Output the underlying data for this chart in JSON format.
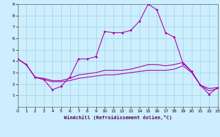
{
  "line1_x": [
    0,
    1,
    2,
    3,
    4,
    5,
    6,
    7,
    8,
    9,
    10,
    11,
    12,
    13,
    14,
    15,
    16,
    17,
    18,
    19,
    20,
    21,
    22,
    23
  ],
  "line1_y": [
    4.2,
    3.7,
    2.6,
    2.4,
    1.5,
    1.8,
    2.6,
    4.2,
    4.2,
    4.4,
    6.6,
    6.5,
    6.5,
    6.7,
    7.5,
    9.0,
    8.5,
    6.5,
    6.1,
    3.8,
    3.1,
    1.9,
    1.1,
    1.7
  ],
  "line2_x": [
    0,
    1,
    2,
    3,
    4,
    5,
    6,
    7,
    8,
    9,
    10,
    11,
    12,
    13,
    14,
    15,
    16,
    17,
    18,
    19,
    20,
    21,
    22,
    23
  ],
  "line2_y": [
    4.2,
    3.7,
    2.6,
    2.5,
    2.3,
    2.3,
    2.5,
    2.8,
    2.9,
    3.0,
    3.2,
    3.2,
    3.2,
    3.3,
    3.5,
    3.7,
    3.7,
    3.6,
    3.7,
    3.9,
    3.1,
    1.9,
    1.6,
    1.7
  ],
  "line3_x": [
    0,
    1,
    2,
    3,
    4,
    5,
    6,
    7,
    8,
    9,
    10,
    11,
    12,
    13,
    14,
    15,
    16,
    17,
    18,
    19,
    20,
    21,
    22,
    23
  ],
  "line3_y": [
    4.2,
    3.7,
    2.6,
    2.4,
    2.2,
    2.2,
    2.3,
    2.5,
    2.6,
    2.7,
    2.8,
    2.8,
    2.9,
    3.0,
    3.1,
    3.2,
    3.2,
    3.2,
    3.3,
    3.6,
    3.0,
    1.9,
    1.4,
    1.6
  ],
  "line_color": "#aa00aa",
  "bg_color": "#cceeff",
  "xlabel": "Windchill (Refroidissement éolien,°C)",
  "ylim": [
    0,
    9
  ],
  "xlim": [
    0,
    23
  ],
  "yticks": [
    1,
    2,
    3,
    4,
    5,
    6,
    7,
    8,
    9
  ],
  "xticks": [
    0,
    1,
    2,
    3,
    4,
    5,
    6,
    7,
    8,
    9,
    10,
    11,
    12,
    13,
    14,
    15,
    16,
    17,
    18,
    19,
    20,
    21,
    22,
    23
  ],
  "marker_size": 2,
  "line_width": 0.8
}
